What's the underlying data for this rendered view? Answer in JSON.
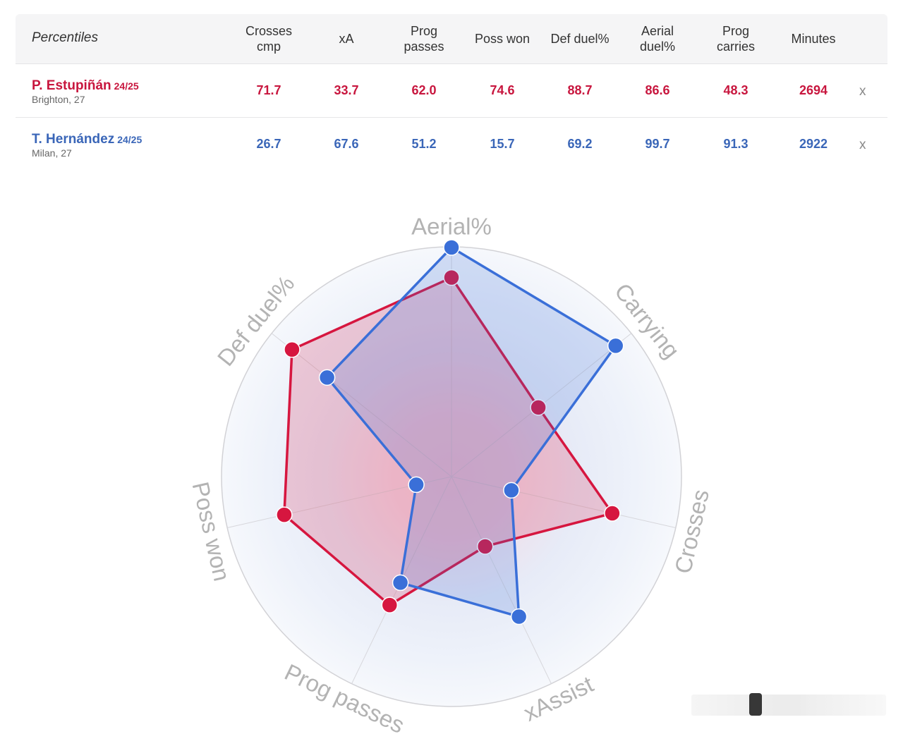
{
  "table": {
    "header_title": "Percentiles",
    "columns": [
      "Crosses\ncmp",
      "xA",
      "Prog\npasses",
      "Poss won",
      "Def duel%",
      "Aerial\nduel%",
      "Prog\ncarries",
      "Minutes"
    ],
    "remove_label": "x",
    "rows": [
      {
        "name": "P. Estupiñán",
        "season": "24/25",
        "club": "Brighton, 27",
        "values": [
          "71.7",
          "33.7",
          "62.0",
          "74.6",
          "88.7",
          "86.6",
          "48.3",
          "2694"
        ]
      },
      {
        "name": "T. Hernández",
        "season": "24/25",
        "club": "Milan, 27",
        "values": [
          "26.7",
          "67.6",
          "51.2",
          "15.7",
          "69.2",
          "99.7",
          "91.3",
          "2922"
        ]
      }
    ]
  },
  "colors": {
    "red": "#c8163e",
    "blue": "#3a66b8"
  },
  "chart_data": {
    "type": "radar",
    "axes": [
      "Aerial%",
      "Carrying",
      "Crosses",
      "xAssist",
      "Prog passes",
      "Poss won",
      "Def duel%"
    ],
    "range": [
      0,
      100
    ],
    "series": [
      {
        "name": "P. Estupiñán",
        "color": "#d6163f",
        "values": [
          86.6,
          48.3,
          71.7,
          33.7,
          62.0,
          74.6,
          88.7
        ]
      },
      {
        "name": "T. Hernández",
        "color": "#3a6fd8",
        "values": [
          99.7,
          91.3,
          26.7,
          67.6,
          51.2,
          15.7,
          69.2
        ]
      }
    ]
  }
}
